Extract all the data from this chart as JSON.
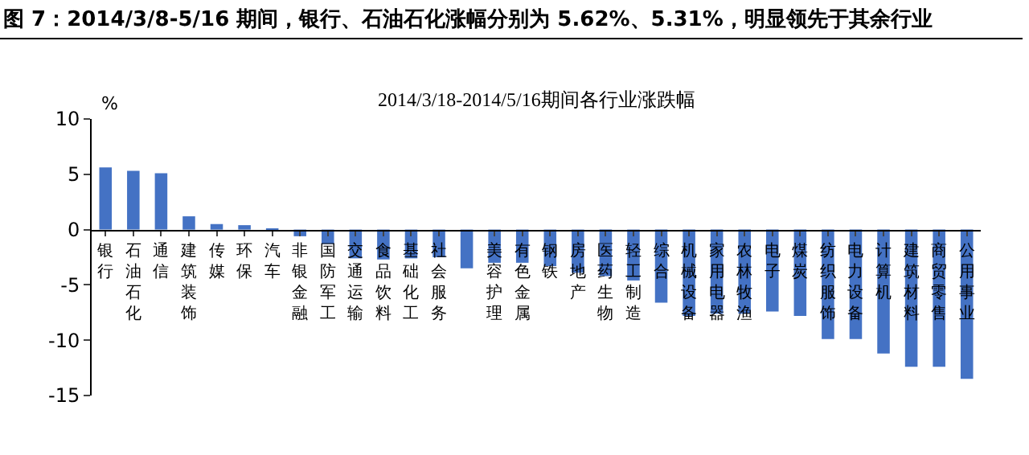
{
  "chart_data": {
    "type": "bar",
    "title": "图 7：2014/3/8-5/16 期间，银行、石油石化涨幅分别为 5.62%、5.31%，明显领先于其余行业",
    "subtitle": "2014/3/18-2014/5/16期间各行业涨跌幅",
    "ylabel": "%",
    "categories": [
      "银行",
      "石油石化",
      "通信",
      "建筑装饰",
      "传媒",
      "环保",
      "汽车",
      "非银金融",
      "国防军工",
      "交通运输",
      "食品饮料",
      "基础化工",
      "社会服务",
      null,
      "美容护理",
      "有色金属",
      "钢铁",
      "房地产",
      "医药生物",
      "轻工制造",
      "综合",
      "机械设备",
      "家用电器",
      "农林牧渔",
      "电子",
      "煤炭",
      "纺织服饰",
      "电力设备",
      "计算机",
      "建筑材料",
      "商贸零售",
      "公用事业"
    ],
    "values": [
      5.62,
      5.31,
      5.1,
      1.2,
      0.5,
      0.4,
      0.05,
      -0.6,
      -1.3,
      -2.6,
      -2.7,
      -2.6,
      -2.5,
      -3.5,
      -3.0,
      -3.0,
      -3.3,
      -3.9,
      -4.2,
      -4.6,
      -6.6,
      -7.8,
      -7.6,
      -7.6,
      -7.4,
      -7.8,
      -9.9,
      -9.9,
      -11.2,
      -12.4,
      -12.4,
      -13.5
    ],
    "color": "#4472c4",
    "ylim": [
      -15,
      10
    ],
    "yticks": [
      -15,
      -10,
      -5,
      0,
      5,
      10
    ],
    "grid": false,
    "legend": false
  }
}
